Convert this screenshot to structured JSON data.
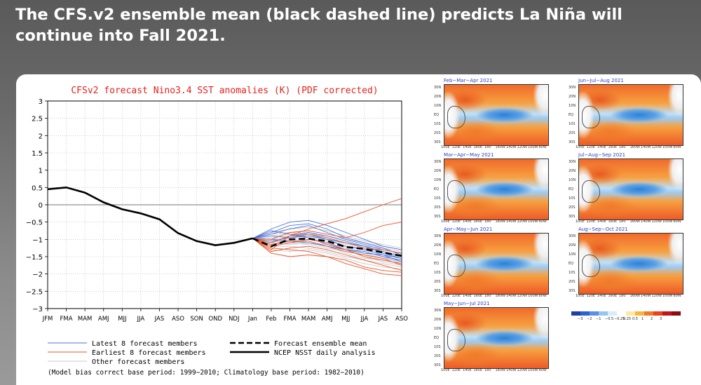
{
  "headline": "The CFS.v2 ensemble mean (black dashed line) predicts La Niña will continue into Fall 2021.",
  "chart_data": {
    "type": "line",
    "title": "CFSv2 forecast Nino3.4 SST anomalies (K) (PDF corrected)",
    "title_color": "#e8201c",
    "categories": [
      "JFM",
      "FMA",
      "MAM",
      "AMJ",
      "MJJ",
      "JJA",
      "JAS",
      "ASO",
      "SON",
      "OND",
      "NDJ",
      "Jan",
      "Feb",
      "FMA",
      "MAM",
      "AMJ",
      "MJJ",
      "JJA",
      "JAS",
      "ASO"
    ],
    "ylim": [
      -3,
      3
    ],
    "yticks": [
      "3",
      "2.5",
      "2",
      "1.5",
      "1",
      "0.5",
      "0",
      "−0.5",
      "−1",
      "−1.5",
      "−2",
      "−2.5",
      "−3"
    ],
    "ytick_values": [
      3,
      2.5,
      2,
      1.5,
      1,
      0.5,
      0,
      -0.5,
      -1,
      -1.5,
      -2,
      -2.5,
      -3
    ],
    "grid": true,
    "observed": {
      "name": "NCEP NSST daily analysis",
      "x_start": 0,
      "values": [
        0.45,
        0.5,
        0.35,
        0.07,
        -0.13,
        -0.25,
        -0.42,
        -0.82,
        -1.05,
        -1.17,
        -1.1,
        -0.97
      ]
    },
    "ensemble_mean": {
      "name": "Forecast ensemble mean",
      "x_start": 11,
      "values": [
        -0.97,
        -1.2,
        -1.0,
        -0.98,
        -1.05,
        -1.22,
        -1.28,
        -1.38,
        -1.48
      ]
    },
    "latest_members": {
      "name": "Latest 8 forecast members",
      "color": "#4a72d9",
      "x_start": 11,
      "series": [
        [
          -0.97,
          -0.7,
          -0.5,
          -0.45,
          -0.6,
          -0.8,
          -1.0,
          -1.2,
          -1.3
        ],
        [
          -0.97,
          -0.85,
          -0.7,
          -0.6,
          -0.8,
          -1.0,
          -1.15,
          -1.3,
          -1.4
        ],
        [
          -0.97,
          -0.9,
          -0.95,
          -0.9,
          -1.0,
          -1.1,
          -1.2,
          -1.35,
          -1.5
        ],
        [
          -0.97,
          -1.1,
          -0.9,
          -0.8,
          -0.9,
          -1.05,
          -1.2,
          -1.4,
          -1.55
        ],
        [
          -0.97,
          -0.8,
          -0.6,
          -0.55,
          -0.7,
          -0.95,
          -1.1,
          -1.25,
          -1.45
        ],
        [
          -0.97,
          -1.0,
          -1.05,
          -1.1,
          -1.2,
          -1.3,
          -1.35,
          -1.5,
          -1.6
        ],
        [
          -0.97,
          -0.75,
          -0.85,
          -0.95,
          -1.15,
          -1.3,
          -1.4,
          -1.45,
          -1.55
        ],
        [
          -0.97,
          -1.05,
          -0.95,
          -0.85,
          -1.0,
          -1.2,
          -1.3,
          -1.45,
          -1.65
        ]
      ]
    },
    "earliest_members": {
      "name": "Earliest 8 forecast members",
      "color": "#e8542a",
      "x_start": 11,
      "series": [
        [
          -0.97,
          -1.3,
          -0.9,
          -0.7,
          -0.55,
          -0.4,
          -0.2,
          0.0,
          0.18
        ],
        [
          -0.97,
          -1.4,
          -1.5,
          -1.45,
          -1.5,
          -1.6,
          -1.8,
          -1.9,
          -1.95
        ],
        [
          -0.97,
          -1.2,
          -1.1,
          -1.0,
          -1.1,
          -1.3,
          -1.5,
          -1.6,
          -1.7
        ],
        [
          -0.97,
          -1.35,
          -1.25,
          -1.2,
          -1.3,
          -1.45,
          -1.6,
          -1.75,
          -1.9
        ],
        [
          -0.97,
          -1.1,
          -0.9,
          -0.85,
          -0.95,
          -1.1,
          -1.25,
          -1.3,
          -1.4
        ],
        [
          -0.97,
          -1.25,
          -1.3,
          -1.35,
          -1.5,
          -1.7,
          -1.85,
          -2.0,
          -2.05
        ],
        [
          -0.97,
          -1.0,
          -0.8,
          -0.75,
          -0.85,
          -0.95,
          -0.8,
          -0.6,
          -0.5
        ],
        [
          -0.97,
          -1.15,
          -1.05,
          -1.05,
          -1.2,
          -1.35,
          -1.45,
          -1.55,
          -1.75
        ]
      ]
    },
    "other_members": {
      "name": "Other forecast members",
      "color": "#c8c8c8",
      "x_start": 11,
      "series": [
        [
          -0.97,
          -0.8,
          -0.7,
          -0.65,
          -0.75,
          -0.9,
          -1.05,
          -1.15,
          -1.25
        ],
        [
          -0.97,
          -1.05,
          -1.1,
          -1.15,
          -1.25,
          -1.35,
          -1.45,
          -1.55,
          -1.6
        ],
        [
          -0.97,
          -0.9,
          -0.85,
          -0.8,
          -0.95,
          -1.15,
          -1.3,
          -1.4,
          -1.5
        ],
        [
          -0.97,
          -1.15,
          -1.0,
          -0.95,
          -1.1,
          -1.25,
          -1.35,
          -1.5,
          -1.7
        ],
        [
          -0.97,
          -1.2,
          -1.2,
          -1.25,
          -1.35,
          -1.5,
          -1.6,
          -1.7,
          -1.8
        ],
        [
          -0.97,
          -0.95,
          -0.9,
          -0.9,
          -1.0,
          -1.1,
          -1.2,
          -1.25,
          -1.35
        ],
        [
          -0.97,
          -1.1,
          -1.15,
          -1.1,
          -1.15,
          -1.3,
          -1.4,
          -1.55,
          -1.65
        ],
        [
          -0.97,
          -1.0,
          -0.95,
          -0.9,
          -1.05,
          -1.2,
          -1.25,
          -1.35,
          -1.45
        ],
        [
          -0.97,
          -1.3,
          -1.35,
          -1.3,
          -1.4,
          -1.55,
          -1.7,
          -1.8,
          -1.85
        ],
        [
          -0.97,
          -0.85,
          -0.8,
          -0.85,
          -0.9,
          -1.0,
          -1.1,
          -1.2,
          -1.3
        ],
        [
          -0.97,
          -1.05,
          -1.05,
          -1.0,
          -1.1,
          -1.25,
          -1.5,
          -1.65,
          -1.75
        ],
        [
          -0.97,
          -1.2,
          -1.1,
          -1.05,
          -1.2,
          -1.4,
          -1.55,
          -1.6,
          -1.7
        ]
      ]
    },
    "legend": {
      "latest": "Latest 8 forecast members",
      "earliest": "Earliest 8 forecast members",
      "other": "Other forecast members",
      "mean": "Forecast ensemble mean",
      "observed": "NCEP NSST daily analysis"
    },
    "footnote": "(Model bias correct base period: 1999−2010; Climatology base period: 1982−2010)"
  },
  "maps": [
    {
      "title": "Feb−Mar−Apr 2021"
    },
    {
      "title": "Jun−Jul−Aug 2021"
    },
    {
      "title": "Mar−Apr−May 2021"
    },
    {
      "title": "Jul−Aug−Sep 2021"
    },
    {
      "title": "Apr−May−Jun 2021"
    },
    {
      "title": "Aug−Sep−Oct 2021"
    },
    {
      "title": "May−Jun−Jul 2021"
    }
  ],
  "map_lat_labels": [
    "30N",
    "20N",
    "10N",
    "EQ",
    "10S",
    "20S",
    "30S"
  ],
  "map_lon_labels": [
    "100E",
    "120E",
    "140E",
    "160E",
    "180",
    "160W",
    "140W",
    "120W",
    "100W",
    "80W"
  ],
  "colorbar": {
    "colors": [
      "#1f3fa8",
      "#2f62d0",
      "#5a90e8",
      "#98c4f4",
      "#d8ecfb",
      "#ffffff",
      "#fde9a0",
      "#f8b544",
      "#f07a2a",
      "#e8421e",
      "#c0161a",
      "#8c0a10"
    ],
    "labels": [
      "−3",
      "−2",
      "−1",
      "−0.5",
      "−0.25",
      "0.25",
      "0.5",
      "1",
      "2",
      "3"
    ]
  }
}
